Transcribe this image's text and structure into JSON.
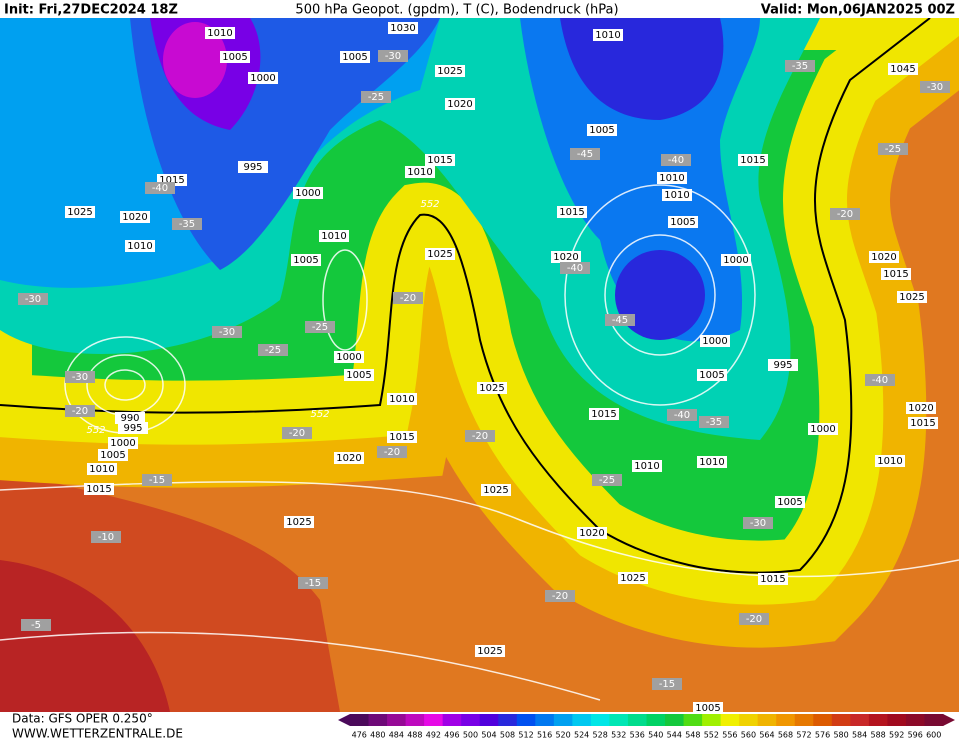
{
  "header": {
    "init": "Init: Fri,27DEC2024 18Z",
    "title": "500 hPa Geopot. (gpdm), T (C), Bodendruck (hPa)",
    "valid": "Valid: Mon,06JAN2025 00Z"
  },
  "footer": {
    "data": "Data: GFS OPER 0.250°",
    "site": "WWW.WETTERZENTRALE.DE"
  },
  "colorbar": {
    "labels": [
      476,
      480,
      484,
      488,
      492,
      496,
      500,
      504,
      508,
      512,
      516,
      520,
      524,
      528,
      532,
      536,
      540,
      544,
      548,
      552,
      556,
      560,
      564,
      568,
      572,
      576,
      580,
      584,
      588,
      592,
      596,
      600
    ],
    "colors": [
      "#4b0a5a",
      "#6e0a78",
      "#960a96",
      "#be0abe",
      "#e60ae6",
      "#a000e6",
      "#7800e6",
      "#5000dc",
      "#2828dc",
      "#0050f0",
      "#0078f0",
      "#00a0f0",
      "#00c8f0",
      "#00e6e6",
      "#00e6b4",
      "#00dc8c",
      "#00d264",
      "#14c83c",
      "#50dc14",
      "#a0f000",
      "#f0f000",
      "#f0d200",
      "#f0b400",
      "#f09600",
      "#e67800",
      "#dc5a00",
      "#d23c14",
      "#c82828",
      "#b4141e",
      "#a00a1e",
      "#8c0a28",
      "#780a32"
    ]
  },
  "map": {
    "pressure_labels": [
      "1010",
      "1005",
      "1000",
      "1030",
      "1005",
      "1025",
      "1020",
      "1010",
      "1045",
      "1005",
      "1015",
      "1015",
      "1010",
      "1010",
      "1010",
      "995",
      "1015",
      "1000",
      "1015",
      "1005",
      "1025",
      "1020",
      "1010",
      "1010",
      "1005",
      "1025",
      "1020",
      "1000",
      "1020",
      "1015",
      "1025",
      "1000",
      "1005",
      "1000",
      "1005",
      "995",
      "1025",
      "1010",
      "990",
      "995",
      "1000",
      "1005",
      "1010",
      "1015",
      "1015",
      "1020",
      "1015",
      "1020",
      "1015",
      "1000",
      "1010",
      "1010",
      "1010",
      "1025",
      "1005",
      "1025",
      "1020",
      "1025",
      "1015",
      "1025",
      "1005"
    ],
    "temperature_labels": [
      "-35",
      "-30",
      "-25",
      "-20",
      "-40",
      "-35",
      "-30",
      "-30",
      "-25",
      "-25",
      "-30",
      "-20",
      "-20",
      "-20",
      "-20",
      "-20",
      "-15",
      "-10",
      "-15",
      "-5",
      "-20",
      "-20",
      "-15",
      "-45",
      "-40",
      "-40",
      "-45",
      "-40",
      "-35",
      "-25",
      "-30",
      "-40",
      "-25",
      "-30"
    ],
    "geopotential_labels": [
      "552",
      "552",
      "552"
    ]
  }
}
